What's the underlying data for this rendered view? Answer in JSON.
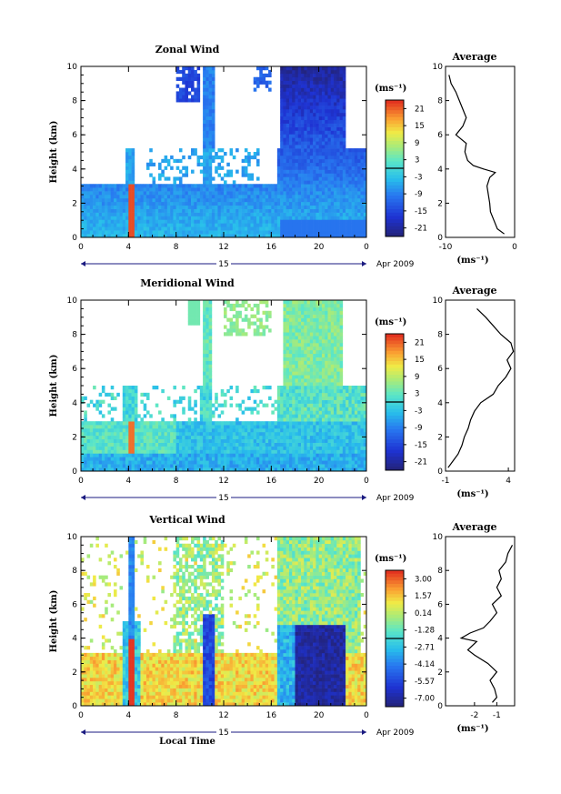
{
  "figure": {
    "xlabel_bottom": "Local Time",
    "date_label": "Apr 2009",
    "day_label": "15",
    "x_ticks": [
      "0",
      "4",
      "8",
      "12",
      "16",
      "20",
      "0"
    ],
    "y_ticks": [
      "0",
      "2",
      "4",
      "6",
      "8",
      "10"
    ],
    "ylabel": "Height (km)",
    "unit_label": "(ms⁻¹)",
    "average_title": "Average"
  },
  "chart_data": [
    {
      "type": "heatmap",
      "title": "Zonal Wind",
      "xlabel": "",
      "ylabel": "Height (km)",
      "xlim": [
        0,
        24
      ],
      "ylim": [
        0,
        10
      ],
      "colorbar_ticks": [
        "21",
        "15",
        "9",
        "3",
        "-3",
        "-9",
        "-15",
        "-21"
      ],
      "colorbar_range": [
        -24,
        24
      ],
      "average_profile": {
        "title": "Average",
        "xlabel": "(ms⁻¹)",
        "x_ticks": [
          "-10",
          "0"
        ],
        "xlim": [
          -10,
          0
        ],
        "heights": [
          0.2,
          0.5,
          1,
          1.5,
          2,
          2.5,
          3,
          3.5,
          3.8,
          4,
          4.2,
          4.5,
          5,
          5.5,
          6,
          6.5,
          7,
          7.5,
          8,
          8.5,
          9,
          9.5
        ],
        "values": [
          -1.5,
          -2.5,
          -3.0,
          -3.5,
          -3.6,
          -3.8,
          -4.0,
          -3.6,
          -2.8,
          -4.5,
          -6.0,
          -6.8,
          -7.2,
          -7.0,
          -8.5,
          -7.5,
          -7.0,
          -7.5,
          -8.0,
          -8.5,
          -9.2,
          -9.5
        ]
      }
    },
    {
      "type": "heatmap",
      "title": "Meridional Wind",
      "xlabel": "",
      "ylabel": "Height (km)",
      "xlim": [
        0,
        24
      ],
      "ylim": [
        0,
        10
      ],
      "colorbar_ticks": [
        "21",
        "15",
        "9",
        "3",
        "-3",
        "-9",
        "-15",
        "-21"
      ],
      "colorbar_range": [
        -24,
        24
      ],
      "average_profile": {
        "title": "Average",
        "xlabel": "(ms⁻¹)",
        "x_ticks": [
          "-1",
          "4"
        ],
        "xlim": [
          -1,
          4.5
        ],
        "heights": [
          0.2,
          0.5,
          1,
          1.5,
          2,
          2.5,
          3,
          3.5,
          4,
          4.5,
          5,
          5.5,
          6,
          6.5,
          7,
          7.5,
          8,
          8.5,
          9,
          9.5
        ],
        "values": [
          -0.8,
          -0.5,
          0.0,
          0.3,
          0.5,
          0.8,
          1.0,
          1.3,
          1.8,
          2.8,
          3.2,
          3.8,
          4.2,
          3.9,
          4.4,
          4.2,
          3.4,
          2.8,
          2.2,
          1.5
        ]
      }
    },
    {
      "type": "heatmap",
      "title": "Vertical Wind",
      "xlabel": "Local Time",
      "ylabel": "Height (km)",
      "xlim": [
        0,
        24
      ],
      "ylim": [
        0,
        10
      ],
      "colorbar_ticks": [
        "3.00",
        "1.57",
        "0.14",
        "-1.28",
        "-2.71",
        "-4.14",
        "-5.57",
        "-7.00"
      ],
      "colorbar_range": [
        -7.7,
        3.7
      ],
      "average_profile": {
        "title": "Average",
        "xlabel": "(ms⁻¹)",
        "x_ticks": [
          "-2",
          "-1"
        ],
        "xlim": [
          -3.3,
          -0.2
        ],
        "heights": [
          0.2,
          0.5,
          1,
          1.5,
          2,
          2.5,
          3,
          3.3,
          3.8,
          4,
          4.3,
          4.6,
          5,
          5.5,
          6,
          6.5,
          7,
          7.5,
          8,
          8.5,
          9,
          9.5
        ],
        "values": [
          -1.2,
          -1.0,
          -1.1,
          -1.3,
          -1.0,
          -1.4,
          -2.0,
          -2.3,
          -1.9,
          -2.6,
          -2.2,
          -1.6,
          -1.3,
          -1.0,
          -1.2,
          -0.8,
          -1.0,
          -0.8,
          -0.9,
          -0.6,
          -0.5,
          -0.3
        ]
      }
    }
  ]
}
